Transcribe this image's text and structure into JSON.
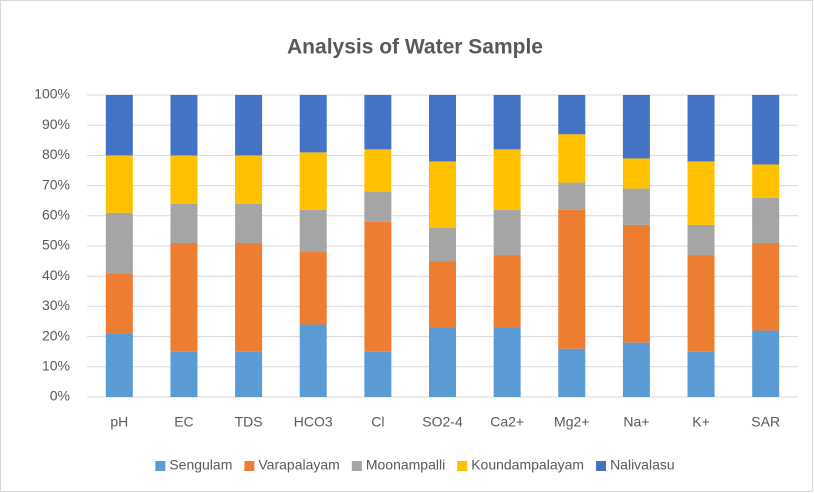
{
  "chart_data": {
    "type": "stacked_bar_100",
    "title": "Analysis of Water Sample",
    "categories": [
      "pH",
      "EC",
      "TDS",
      "HCO3",
      "Cl",
      "SO2-4",
      "Ca2+",
      "Mg2+",
      "Na+",
      "K+",
      "SAR"
    ],
    "series": [
      {
        "name": "Sengulam",
        "color": "#5b9bd5",
        "values": [
          21,
          15,
          15,
          24,
          15,
          23,
          23,
          16,
          18,
          15,
          22
        ]
      },
      {
        "name": "Varapalayam",
        "color": "#ed7d31",
        "values": [
          20,
          36,
          36,
          24,
          43,
          22,
          24,
          46,
          39,
          32,
          29
        ]
      },
      {
        "name": "Moonampalli",
        "color": "#a5a5a5",
        "values": [
          20,
          13,
          13,
          14,
          10,
          11,
          15,
          9,
          12,
          10,
          15
        ]
      },
      {
        "name": "Koundampalayam",
        "color": "#ffc000",
        "values": [
          19,
          16,
          16,
          19,
          14,
          22,
          20,
          16,
          10,
          21,
          11
        ]
      },
      {
        "name": "Nalivalasu",
        "color": "#4472c4",
        "values": [
          20,
          20,
          20,
          19,
          18,
          22,
          18,
          13,
          21,
          22,
          23
        ]
      }
    ],
    "ylim": [
      0,
      100
    ],
    "yticks": [
      {
        "value": 0,
        "label": "0%"
      },
      {
        "value": 10,
        "label": "10%"
      },
      {
        "value": 20,
        "label": "20%"
      },
      {
        "value": 30,
        "label": "30%"
      },
      {
        "value": 40,
        "label": "40%"
      },
      {
        "value": 50,
        "label": "50%"
      },
      {
        "value": 60,
        "label": "60%"
      },
      {
        "value": 70,
        "label": "70%"
      },
      {
        "value": 80,
        "label": "80%"
      },
      {
        "value": 90,
        "label": "90%"
      },
      {
        "value": 100,
        "label": "100%"
      }
    ],
    "grid": true,
    "legend": "bottom"
  }
}
